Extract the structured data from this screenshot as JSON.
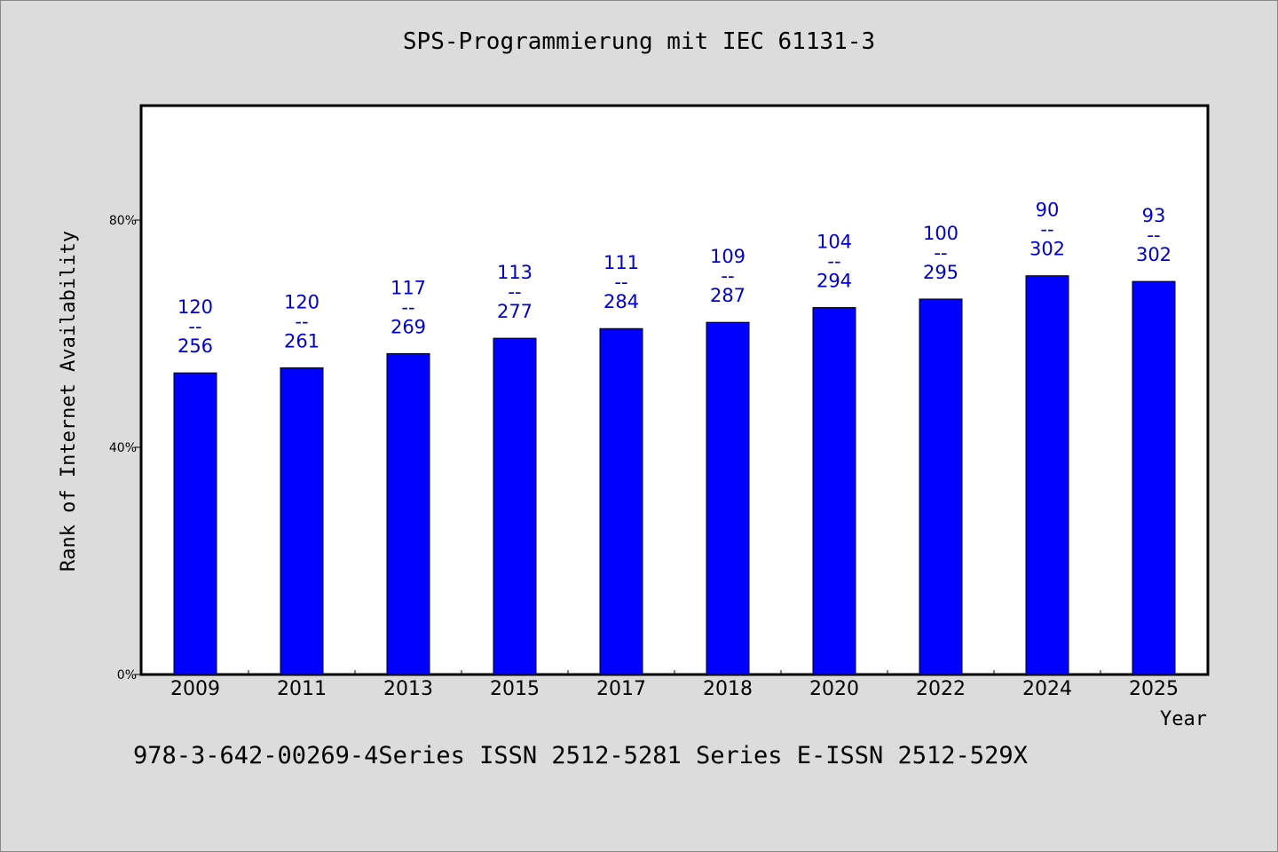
{
  "chart_data": {
    "type": "bar",
    "title": "SPS-Programmierung mit IEC 61131-3",
    "xlabel": "Year",
    "ylabel": "Rank of Internet Availability",
    "ylim": [
      0,
      100
    ],
    "yticks": [
      {
        "value": 0,
        "label": "0%"
      },
      {
        "value": 40,
        "label": "40%"
      },
      {
        "value": 80,
        "label": "80%"
      }
    ],
    "grid": false,
    "bar_color": "#0000ff",
    "label_color": "#0000c8",
    "categories": [
      "2009",
      "2011",
      "2013",
      "2015",
      "2017",
      "2018",
      "2020",
      "2022",
      "2024",
      "2025"
    ],
    "values": [
      53.1,
      54.0,
      56.5,
      59.2,
      60.9,
      62.0,
      64.6,
      66.1,
      70.2,
      69.2
    ],
    "rank": [
      "120",
      "120",
      "117",
      "113",
      "111",
      "109",
      "104",
      "100",
      "90",
      "93"
    ],
    "total": [
      "256",
      "261",
      "269",
      "277",
      "284",
      "287",
      "294",
      "295",
      "302",
      "302"
    ],
    "separator": "--"
  },
  "footer": "978-3-642-00269-4Series ISSN 2512-5281 Series E-ISSN 2512-529X"
}
